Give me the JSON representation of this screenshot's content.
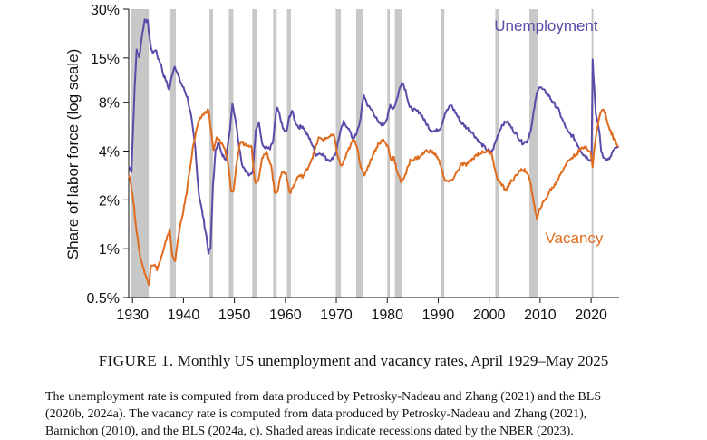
{
  "caption": {
    "figure": "FIGURE 1.",
    "text": "Monthly US unemployment and vacancy rates, April 1929–May 2025"
  },
  "note": {
    "line1": "The unemployment rate is computed from data produced by Petrosky-Nadeau and Zhang (2021) and the BLS",
    "line2": "(2020b, 2024a). The vacancy rate is computed from data produced by Petrosky-Nadeau and Zhang (2021),",
    "line3": "Barnichon (2010), and the BLS (2024a, c). Shaded areas indicate recessions dated by the NBER (2023)."
  },
  "colors": {
    "unemployment": "#5b4aa8",
    "vacancy": "#e06c1f",
    "recession": "#c8c8c8"
  },
  "chart_data": {
    "type": "line",
    "ylabel": "Share of labor force (log scale)",
    "yscale": "log",
    "ylim": [
      0.5,
      30
    ],
    "yticks": [
      0.5,
      1,
      2,
      4,
      8,
      15,
      30
    ],
    "yticklabels": [
      "0.5%",
      "1%",
      "2%",
      "4%",
      "8%",
      "15%",
      "30%"
    ],
    "xlim": [
      1929.25,
      2025.5
    ],
    "xticks": [
      1930,
      1940,
      1950,
      1960,
      1970,
      1980,
      1990,
      2000,
      2010,
      2020
    ],
    "xticklabels": [
      "1930",
      "1940",
      "1950",
      "1960",
      "1970",
      "1980",
      "1990",
      "2000",
      "2010",
      "2020"
    ],
    "recessions": [
      [
        1929.6,
        1933.2
      ],
      [
        1937.4,
        1938.5
      ],
      [
        1945.1,
        1945.8
      ],
      [
        1948.9,
        1949.8
      ],
      [
        1953.5,
        1954.4
      ],
      [
        1957.6,
        1958.3
      ],
      [
        1960.3,
        1961.1
      ],
      [
        1969.9,
        1970.9
      ],
      [
        1973.9,
        1975.2
      ],
      [
        1980.0,
        1980.5
      ],
      [
        1981.5,
        1982.9
      ],
      [
        1990.5,
        1991.2
      ],
      [
        2001.2,
        2001.9
      ],
      [
        2007.9,
        2009.5
      ],
      [
        2020.1,
        2020.3
      ]
    ],
    "series": [
      {
        "name": "Unemployment",
        "label_pos": [
          2001,
          22
        ],
        "points": [
          [
            1929.3,
            3.2
          ],
          [
            1929.8,
            3.0
          ],
          [
            1930.3,
            8
          ],
          [
            1930.8,
            17
          ],
          [
            1931.3,
            15
          ],
          [
            1931.8,
            20
          ],
          [
            1932.4,
            26
          ],
          [
            1933.0,
            25
          ],
          [
            1933.5,
            18
          ],
          [
            1934.0,
            16
          ],
          [
            1934.5,
            17
          ],
          [
            1935.0,
            15
          ],
          [
            1935.5,
            14
          ],
          [
            1936.0,
            12
          ],
          [
            1936.5,
            11
          ],
          [
            1937.2,
            9.5
          ],
          [
            1937.8,
            12
          ],
          [
            1938.3,
            13.5
          ],
          [
            1938.8,
            12
          ],
          [
            1939.5,
            10.5
          ],
          [
            1940.2,
            9.5
          ],
          [
            1940.8,
            8.5
          ],
          [
            1941.5,
            6.5
          ],
          [
            1942.3,
            4.2
          ],
          [
            1943.0,
            2.2
          ],
          [
            1943.8,
            1.6
          ],
          [
            1944.5,
            1.2
          ],
          [
            1944.9,
            0.95
          ],
          [
            1945.3,
            1.0
          ],
          [
            1945.8,
            2.5
          ],
          [
            1946.3,
            4
          ],
          [
            1946.8,
            4.6
          ],
          [
            1947.5,
            3.8
          ],
          [
            1948.3,
            3.6
          ],
          [
            1949.0,
            5.0
          ],
          [
            1949.6,
            7.9
          ],
          [
            1950.2,
            6.3
          ],
          [
            1950.8,
            4.6
          ],
          [
            1951.5,
            3.3
          ],
          [
            1952.3,
            3.0
          ],
          [
            1953.0,
            2.8
          ],
          [
            1953.6,
            3.0
          ],
          [
            1954.2,
            5.5
          ],
          [
            1954.8,
            6.0
          ],
          [
            1955.5,
            4.3
          ],
          [
            1956.2,
            4.2
          ],
          [
            1957.0,
            4.1
          ],
          [
            1957.6,
            4.6
          ],
          [
            1958.3,
            7.4
          ],
          [
            1958.8,
            6.8
          ],
          [
            1959.5,
            5.5
          ],
          [
            1960.2,
            5.2
          ],
          [
            1960.8,
            6.5
          ],
          [
            1961.3,
            7.1
          ],
          [
            1961.9,
            6.1
          ],
          [
            1962.6,
            5.6
          ],
          [
            1963.4,
            5.7
          ],
          [
            1964.2,
            5.1
          ],
          [
            1965.0,
            4.6
          ],
          [
            1966.0,
            3.8
          ],
          [
            1967.0,
            3.9
          ],
          [
            1968.0,
            3.6
          ],
          [
            1969.0,
            3.5
          ],
          [
            1969.9,
            3.9
          ],
          [
            1970.6,
            5.0
          ],
          [
            1971.4,
            6.0
          ],
          [
            1972.3,
            5.6
          ],
          [
            1973.2,
            4.8
          ],
          [
            1973.9,
            5.0
          ],
          [
            1974.6,
            6.0
          ],
          [
            1975.4,
            8.9
          ],
          [
            1976.2,
            7.6
          ],
          [
            1977.2,
            7.0
          ],
          [
            1978.2,
            6.0
          ],
          [
            1979.2,
            5.8
          ],
          [
            1980.0,
            6.4
          ],
          [
            1980.6,
            7.7
          ],
          [
            1981.2,
            7.3
          ],
          [
            1981.7,
            8.0
          ],
          [
            1982.4,
            9.6
          ],
          [
            1982.9,
            10.8
          ],
          [
            1983.6,
            9.5
          ],
          [
            1984.4,
            7.4
          ],
          [
            1985.5,
            7.1
          ],
          [
            1986.5,
            6.9
          ],
          [
            1987.5,
            6.0
          ],
          [
            1988.5,
            5.4
          ],
          [
            1989.5,
            5.3
          ],
          [
            1990.5,
            5.6
          ],
          [
            1991.3,
            6.8
          ],
          [
            1992.5,
            7.7
          ],
          [
            1993.5,
            6.8
          ],
          [
            1994.5,
            6.0
          ],
          [
            1995.5,
            5.6
          ],
          [
            1996.5,
            5.3
          ],
          [
            1997.5,
            4.8
          ],
          [
            1998.5,
            4.4
          ],
          [
            1999.5,
            4.1
          ],
          [
            2000.5,
            3.9
          ],
          [
            2001.5,
            4.8
          ],
          [
            2002.5,
            5.8
          ],
          [
            2003.5,
            6.1
          ],
          [
            2004.5,
            5.5
          ],
          [
            2005.5,
            5.0
          ],
          [
            2006.5,
            4.5
          ],
          [
            2007.5,
            4.6
          ],
          [
            2008.3,
            5.6
          ],
          [
            2008.9,
            7.5
          ],
          [
            2009.5,
            9.6
          ],
          [
            2009.9,
            10.0
          ],
          [
            2010.6,
            9.5
          ],
          [
            2011.5,
            9.0
          ],
          [
            2012.5,
            8.0
          ],
          [
            2013.5,
            7.3
          ],
          [
            2014.5,
            6.1
          ],
          [
            2015.5,
            5.2
          ],
          [
            2016.5,
            4.9
          ],
          [
            2017.5,
            4.3
          ],
          [
            2018.5,
            3.8
          ],
          [
            2019.5,
            3.6
          ],
          [
            2020.1,
            3.5
          ],
          [
            2020.3,
            14.7
          ],
          [
            2020.6,
            10
          ],
          [
            2020.9,
            6.8
          ],
          [
            2021.5,
            5.6
          ],
          [
            2022.0,
            4.0
          ],
          [
            2022.6,
            3.6
          ],
          [
            2023.3,
            3.5
          ],
          [
            2023.9,
            3.7
          ],
          [
            2024.5,
            4.1
          ],
          [
            2025.4,
            4.2
          ]
        ]
      },
      {
        "name": "Vacancy",
        "label_pos": [
          2011,
          1.08
        ],
        "points": [
          [
            1929.3,
            2.9
          ],
          [
            1929.7,
            2.5
          ],
          [
            1930.3,
            1.8
          ],
          [
            1930.9,
            1.2
          ],
          [
            1931.5,
            0.9
          ],
          [
            1932.2,
            0.75
          ],
          [
            1932.8,
            0.65
          ],
          [
            1933.2,
            0.6
          ],
          [
            1933.6,
            0.8
          ],
          [
            1934.2,
            0.8
          ],
          [
            1934.8,
            0.75
          ],
          [
            1935.5,
            0.85
          ],
          [
            1936.2,
            1.0
          ],
          [
            1936.8,
            1.2
          ],
          [
            1937.3,
            1.3
          ],
          [
            1937.8,
            0.9
          ],
          [
            1938.4,
            0.85
          ],
          [
            1939.0,
            1.2
          ],
          [
            1939.8,
            1.6
          ],
          [
            1940.6,
            2.2
          ],
          [
            1941.3,
            3.2
          ],
          [
            1942.0,
            4.5
          ],
          [
            1942.8,
            5.8
          ],
          [
            1943.6,
            6.6
          ],
          [
            1944.3,
            6.9
          ],
          [
            1944.9,
            7.2
          ],
          [
            1945.4,
            5.4
          ],
          [
            1945.9,
            4.0
          ],
          [
            1946.5,
            4.8
          ],
          [
            1947.2,
            4.6
          ],
          [
            1948.0,
            4.2
          ],
          [
            1948.7,
            3.5
          ],
          [
            1949.4,
            2.2
          ],
          [
            1949.9,
            2.3
          ],
          [
            1950.5,
            3.5
          ],
          [
            1951.2,
            4.6
          ],
          [
            1952.0,
            4.4
          ],
          [
            1952.8,
            4.4
          ],
          [
            1953.4,
            4.2
          ],
          [
            1954.0,
            2.6
          ],
          [
            1954.6,
            2.6
          ],
          [
            1955.4,
            3.6
          ],
          [
            1956.3,
            3.9
          ],
          [
            1957.2,
            3.3
          ],
          [
            1957.9,
            2.2
          ],
          [
            1958.5,
            2.3
          ],
          [
            1959.3,
            3.0
          ],
          [
            1960.1,
            2.9
          ],
          [
            1960.9,
            2.2
          ],
          [
            1961.5,
            2.4
          ],
          [
            1962.5,
            2.8
          ],
          [
            1963.5,
            2.8
          ],
          [
            1964.5,
            3.2
          ],
          [
            1965.5,
            3.8
          ],
          [
            1966.5,
            4.8
          ],
          [
            1967.5,
            4.7
          ],
          [
            1968.5,
            4.9
          ],
          [
            1969.5,
            5.0
          ],
          [
            1970.4,
            3.6
          ],
          [
            1971.0,
            3.2
          ],
          [
            1972.0,
            3.8
          ],
          [
            1973.3,
            4.7
          ],
          [
            1974.0,
            4.4
          ],
          [
            1974.8,
            3.2
          ],
          [
            1975.4,
            2.8
          ],
          [
            1976.2,
            3.2
          ],
          [
            1977.2,
            3.8
          ],
          [
            1978.2,
            4.4
          ],
          [
            1979.2,
            4.7
          ],
          [
            1980.2,
            4.2
          ],
          [
            1980.7,
            3.5
          ],
          [
            1981.3,
            3.7
          ],
          [
            1982.0,
            2.9
          ],
          [
            1982.7,
            2.6
          ],
          [
            1983.5,
            2.8
          ],
          [
            1984.5,
            3.5
          ],
          [
            1985.5,
            3.6
          ],
          [
            1986.5,
            3.7
          ],
          [
            1987.5,
            4.0
          ],
          [
            1988.5,
            4.0
          ],
          [
            1989.5,
            3.8
          ],
          [
            1990.5,
            3.3
          ],
          [
            1991.3,
            2.6
          ],
          [
            1992.5,
            2.6
          ],
          [
            1993.5,
            2.9
          ],
          [
            1994.5,
            3.3
          ],
          [
            1995.5,
            3.3
          ],
          [
            1996.5,
            3.5
          ],
          [
            1997.5,
            3.8
          ],
          [
            1998.5,
            3.9
          ],
          [
            1999.5,
            4.0
          ],
          [
            2000.5,
            3.9
          ],
          [
            2001.4,
            2.8
          ],
          [
            2002.3,
            2.5
          ],
          [
            2003.3,
            2.3
          ],
          [
            2004.3,
            2.6
          ],
          [
            2005.3,
            2.8
          ],
          [
            2006.3,
            3.1
          ],
          [
            2007.3,
            3.0
          ],
          [
            2008.2,
            2.5
          ],
          [
            2008.9,
            1.8
          ],
          [
            2009.4,
            1.5
          ],
          [
            2010.0,
            1.8
          ],
          [
            2011.0,
            2.0
          ],
          [
            2012.0,
            2.3
          ],
          [
            2013.0,
            2.5
          ],
          [
            2014.0,
            2.9
          ],
          [
            2015.0,
            3.3
          ],
          [
            2016.0,
            3.6
          ],
          [
            2017.0,
            3.8
          ],
          [
            2018.0,
            4.1
          ],
          [
            2019.0,
            4.3
          ],
          [
            2019.9,
            3.9
          ],
          [
            2020.3,
            3.2
          ],
          [
            2020.8,
            4.6
          ],
          [
            2021.5,
            6.3
          ],
          [
            2022.2,
            7.3
          ],
          [
            2022.8,
            6.8
          ],
          [
            2023.5,
            5.6
          ],
          [
            2024.3,
            4.9
          ],
          [
            2025.4,
            4.3
          ]
        ]
      }
    ]
  }
}
